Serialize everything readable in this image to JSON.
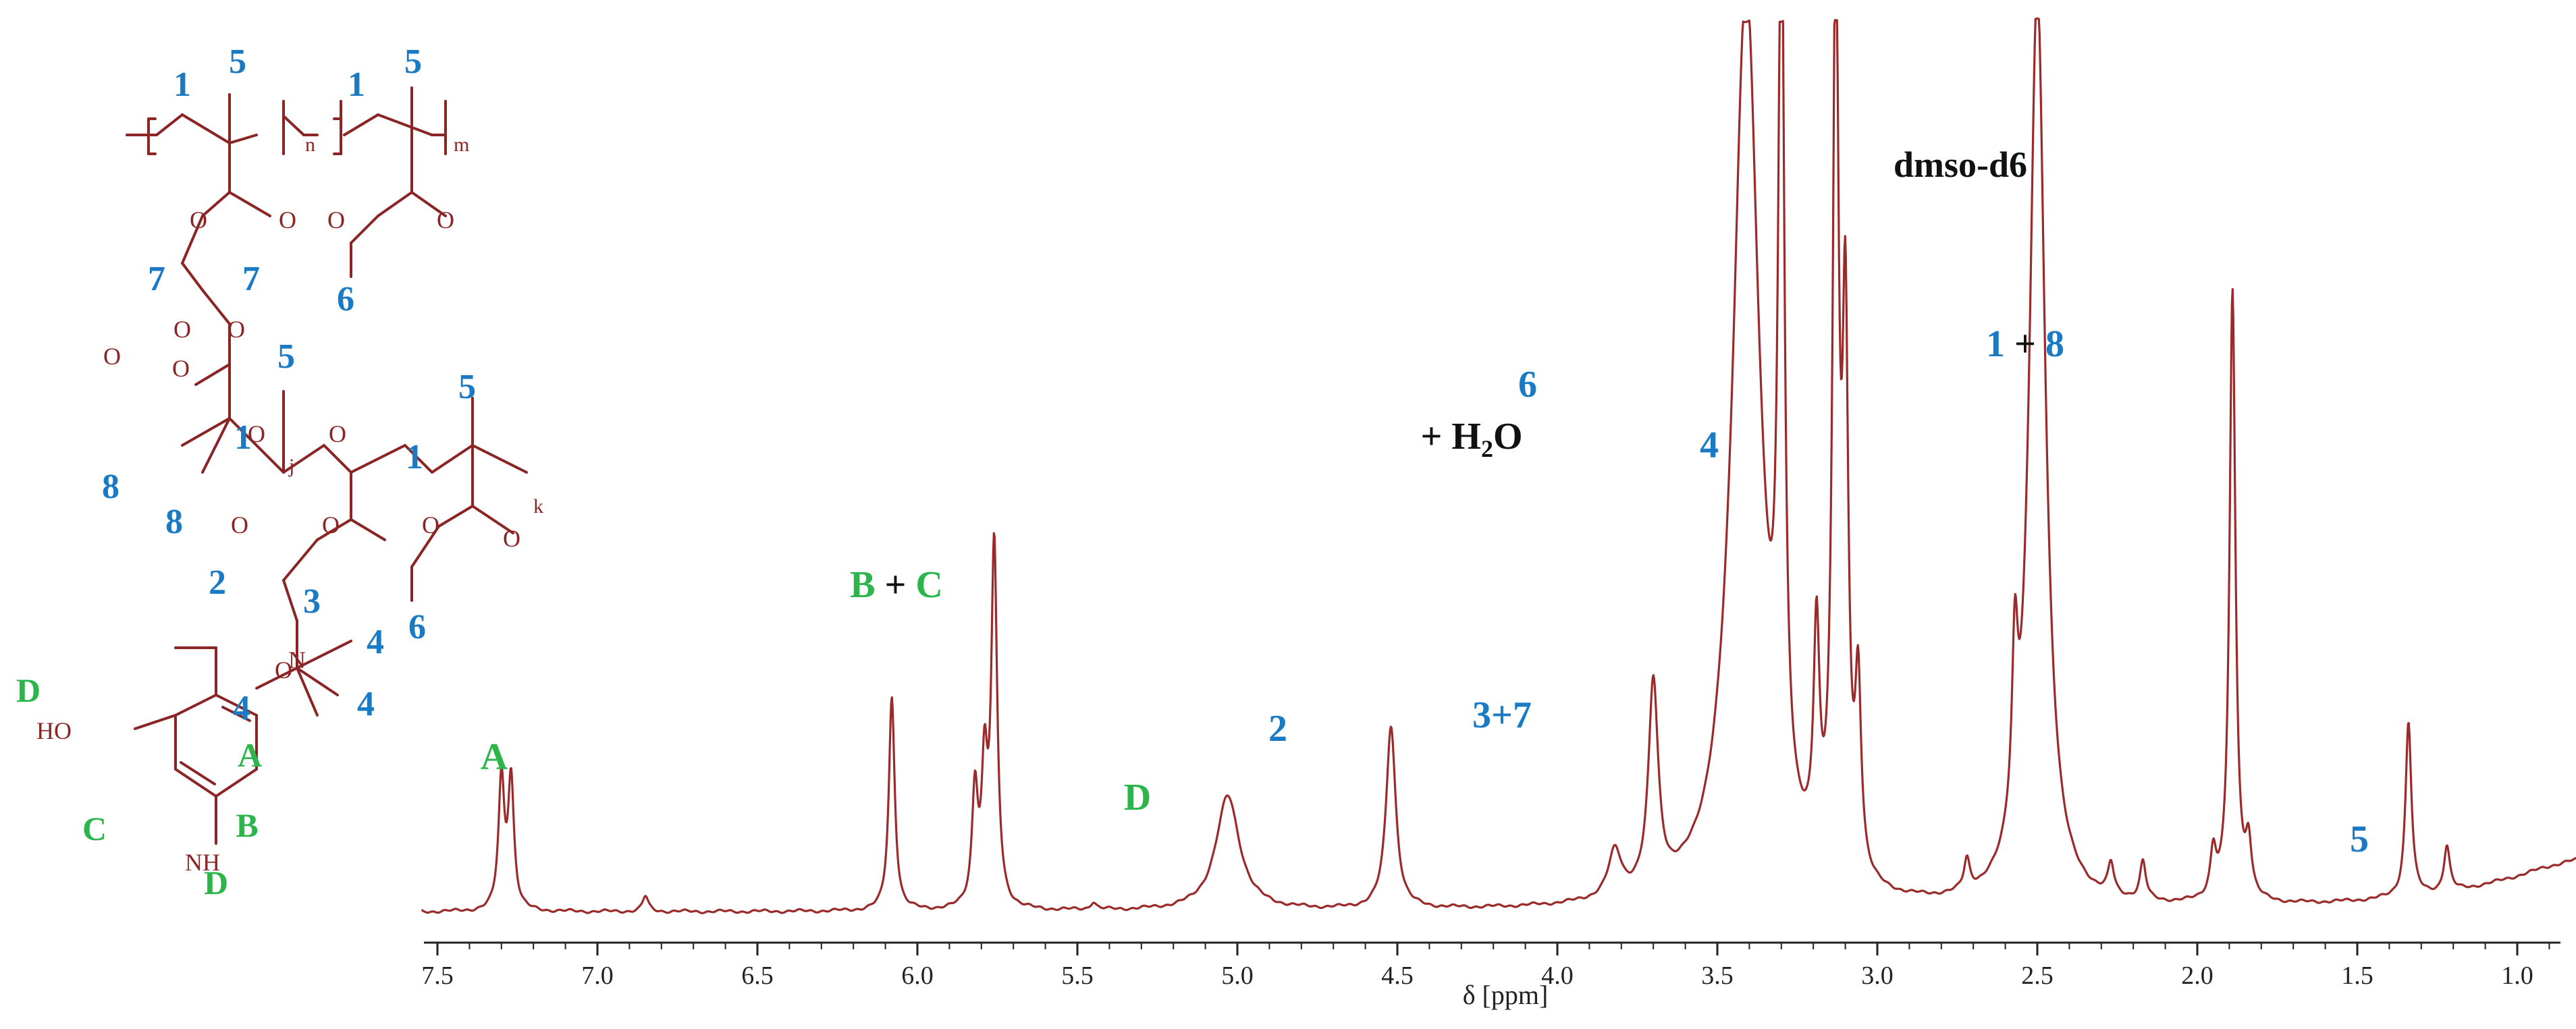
{
  "colors": {
    "spectrum": "#9b2a2a",
    "structure": "#8b2525",
    "blue": "#1a7ac4",
    "green": "#2bb54a",
    "black": "#111111"
  },
  "structure": {
    "icon": "copolymer-structure-drawing",
    "blue_labels": [
      "1",
      "5",
      "1",
      "5",
      "7",
      "7",
      "6",
      "5",
      "5",
      "1",
      "1",
      "8",
      "8",
      "2",
      "3",
      "4",
      "4",
      "4",
      "6"
    ],
    "green_labels": [
      "D",
      "A",
      "B",
      "C",
      "D"
    ],
    "subscripts": [
      "n",
      "m",
      "j",
      "k"
    ],
    "atoms": [
      "O",
      "O",
      "O",
      "O",
      "O",
      "O",
      "O",
      "O",
      "O",
      "O",
      "O",
      "O",
      "O",
      "O",
      "O",
      "N",
      "HO",
      "NH"
    ]
  },
  "chart_data": {
    "type": "line",
    "title": "",
    "xlabel": "δ [ppm]",
    "ylabel": "",
    "xlim": [
      7.55,
      0.05
    ],
    "x_reversed": true,
    "xticks": [
      "7.5",
      "7.0",
      "6.5",
      "6.0",
      "5.5",
      "5.0",
      "4.5",
      "4.0",
      "3.5",
      "3.0",
      "2.5",
      "2.0",
      "1.5",
      "1.0",
      "0.5"
    ],
    "grid": false,
    "solvent_label": "dmso-d6",
    "peaks": [
      {
        "ppm": 7.3,
        "height": 0.17
      },
      {
        "ppm": 7.27,
        "height": 0.17
      },
      {
        "ppm": 6.85,
        "height": 0.02
      },
      {
        "ppm": 6.08,
        "height": 0.28
      },
      {
        "ppm": 5.82,
        "height": 0.15
      },
      {
        "ppm": 5.79,
        "height": 0.17
      },
      {
        "ppm": 5.76,
        "height": 0.47
      },
      {
        "ppm": 5.45,
        "height": 0.01
      },
      {
        "ppm": 5.03,
        "height": 0.15
      },
      {
        "ppm": 4.52,
        "height": 0.24
      },
      {
        "ppm": 3.82,
        "height": 0.06
      },
      {
        "ppm": 3.7,
        "height": 0.27
      },
      {
        "ppm": 3.41,
        "height": 1.2
      },
      {
        "ppm": 3.3,
        "height": 1.2
      },
      {
        "ppm": 3.19,
        "height": 0.29
      },
      {
        "ppm": 3.13,
        "height": 1.2
      },
      {
        "ppm": 3.1,
        "height": 0.68
      },
      {
        "ppm": 3.06,
        "height": 0.24
      },
      {
        "ppm": 2.72,
        "height": 0.04
      },
      {
        "ppm": 2.57,
        "height": 0.22
      },
      {
        "ppm": 2.5,
        "height": 1.2
      },
      {
        "ppm": 2.27,
        "height": 0.04
      },
      {
        "ppm": 2.17,
        "height": 0.05
      },
      {
        "ppm": 1.95,
        "height": 0.06
      },
      {
        "ppm": 1.89,
        "height": 0.8
      },
      {
        "ppm": 1.84,
        "height": 0.07
      },
      {
        "ppm": 1.34,
        "height": 0.23
      },
      {
        "ppm": 1.22,
        "height": 0.06
      },
      {
        "ppm": 0.75,
        "height": 0.07
      }
    ],
    "annotations": [
      {
        "parts": [
          {
            "text": "A",
            "color": "green"
          }
        ],
        "ppm": 7.29
      },
      {
        "parts": [
          {
            "text": "B",
            "color": "green"
          },
          {
            "text": " + ",
            "color": "black"
          },
          {
            "text": "C",
            "color": "green"
          }
        ],
        "ppm": 5.87
      },
      {
        "parts": [
          {
            "text": "D",
            "color": "green"
          }
        ],
        "ppm": 5.03
      },
      {
        "parts": [
          {
            "text": "2",
            "color": "blue"
          }
        ],
        "ppm": 4.52
      },
      {
        "parts": [
          {
            "text": "3+7",
            "color": "blue"
          }
        ],
        "ppm": 3.73
      },
      {
        "parts": [
          {
            "text": "6",
            "color": "blue"
          }
        ],
        "ppm": 3.55
      },
      {
        "parts": [
          {
            "text": "+ H",
            "color": "black"
          },
          {
            "text": "2",
            "color": "black",
            "sub": true
          },
          {
            "text": "O",
            "color": "black"
          }
        ],
        "ppm": 3.62
      },
      {
        "parts": [
          {
            "text": "4",
            "color": "blue"
          }
        ],
        "ppm": 3.03
      },
      {
        "parts": [
          {
            "text": "1",
            "color": "blue"
          },
          {
            "text": " + ",
            "color": "black"
          },
          {
            "text": "8",
            "color": "blue"
          }
        ],
        "ppm": 1.91
      },
      {
        "parts": [
          {
            "text": "5",
            "color": "blue"
          }
        ],
        "ppm": 0.75
      }
    ]
  }
}
